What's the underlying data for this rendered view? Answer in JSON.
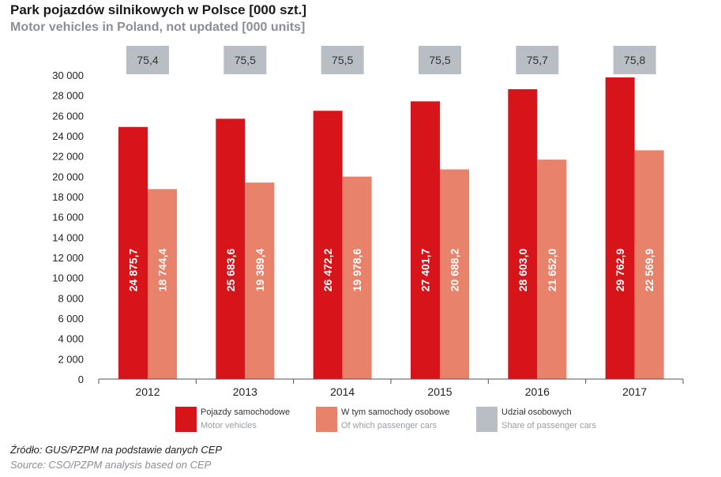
{
  "title": "Park pojazdów silnikowych w Polsce [000 szt.]",
  "subtitle": "Motor vehicles in Poland, not updated [000 units]",
  "source_pl": "Źródło: GUS/PZPM na podstawie danych CEP",
  "source_en": "Source: CSO/PZPM analysis based on CEP",
  "colors": {
    "motor": "#d7141a",
    "passenger": "#e8826a",
    "share": "#b9bec4",
    "axis": "#555555"
  },
  "legend": [
    {
      "pl": "Pojazdy samochodowe",
      "en": "Motor vehicles"
    },
    {
      "pl": "W tym samochody osobowe",
      "en": "Of which passenger cars"
    },
    {
      "pl": "Udział osobowych",
      "en": "Share of passenger cars"
    }
  ],
  "chart_data": {
    "type": "bar",
    "title": "Park pojazdów silnikowych w Polsce [000 szt.]",
    "subtitle": "Motor vehicles in Poland, not updated [000 units]",
    "categories": [
      "2012",
      "2013",
      "2014",
      "2015",
      "2016",
      "2017"
    ],
    "series": [
      {
        "name": "Pojazdy samochodowe / Motor vehicles",
        "values": [
          24875.7,
          25683.6,
          26472.2,
          27401.7,
          28603.0,
          29762.9
        ],
        "labels": [
          "24 875,7",
          "25 683,6",
          "26 472,2",
          "27 401,7",
          "28 603,0",
          "29 762,9"
        ]
      },
      {
        "name": "W tym samochody osobowe / Of which passenger cars",
        "values": [
          18744.4,
          19389.4,
          19978.6,
          20688.2,
          21652.0,
          22569.9
        ],
        "labels": [
          "18 744,4",
          "19 389,4",
          "19 978,6",
          "20 688,2",
          "21 652,0",
          "22 569,9"
        ]
      }
    ],
    "share": {
      "name": "Udział osobowych / Share of passenger cars",
      "values": [
        75.4,
        75.5,
        75.5,
        75.5,
        75.7,
        75.8
      ],
      "labels": [
        "75,4",
        "75,5",
        "75,5",
        "75,5",
        "75,7",
        "75,8"
      ]
    },
    "ylim": [
      0,
      30000
    ],
    "yticks": [
      0,
      2000,
      4000,
      6000,
      8000,
      10000,
      12000,
      14000,
      16000,
      18000,
      20000,
      22000,
      24000,
      26000,
      28000,
      30000
    ],
    "ytick_labels": [
      "0",
      "2 000",
      "4 000",
      "6 000",
      "8 000",
      "10 000",
      "12 000",
      "14 000",
      "16 000",
      "18 000",
      "20 000",
      "22 000",
      "24 000",
      "26 000",
      "28 000",
      "30 000"
    ],
    "xlabel": "",
    "ylabel": "",
    "grid": false,
    "legend_position": "bottom"
  }
}
